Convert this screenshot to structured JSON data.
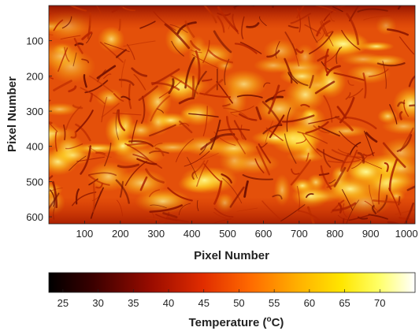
{
  "chart_data": {
    "type": "heatmap",
    "xlabel": "Pixel Number",
    "ylabel": "Pixel Number",
    "xlim": [
      0,
      1024
    ],
    "ylim": [
      0,
      620
    ],
    "y_reversed": true,
    "xticks": [
      100,
      200,
      300,
      400,
      500,
      600,
      700,
      800,
      900,
      1000
    ],
    "yticks": [
      100,
      200,
      300,
      400,
      500,
      600
    ],
    "colorbar": {
      "label_main": "Temperature (",
      "label_sup": "o",
      "label_end": "C)",
      "range": [
        23,
        75
      ],
      "ticks": [
        25,
        30,
        35,
        40,
        45,
        50,
        55,
        60,
        65,
        70
      ],
      "colormap": "hot"
    }
  }
}
